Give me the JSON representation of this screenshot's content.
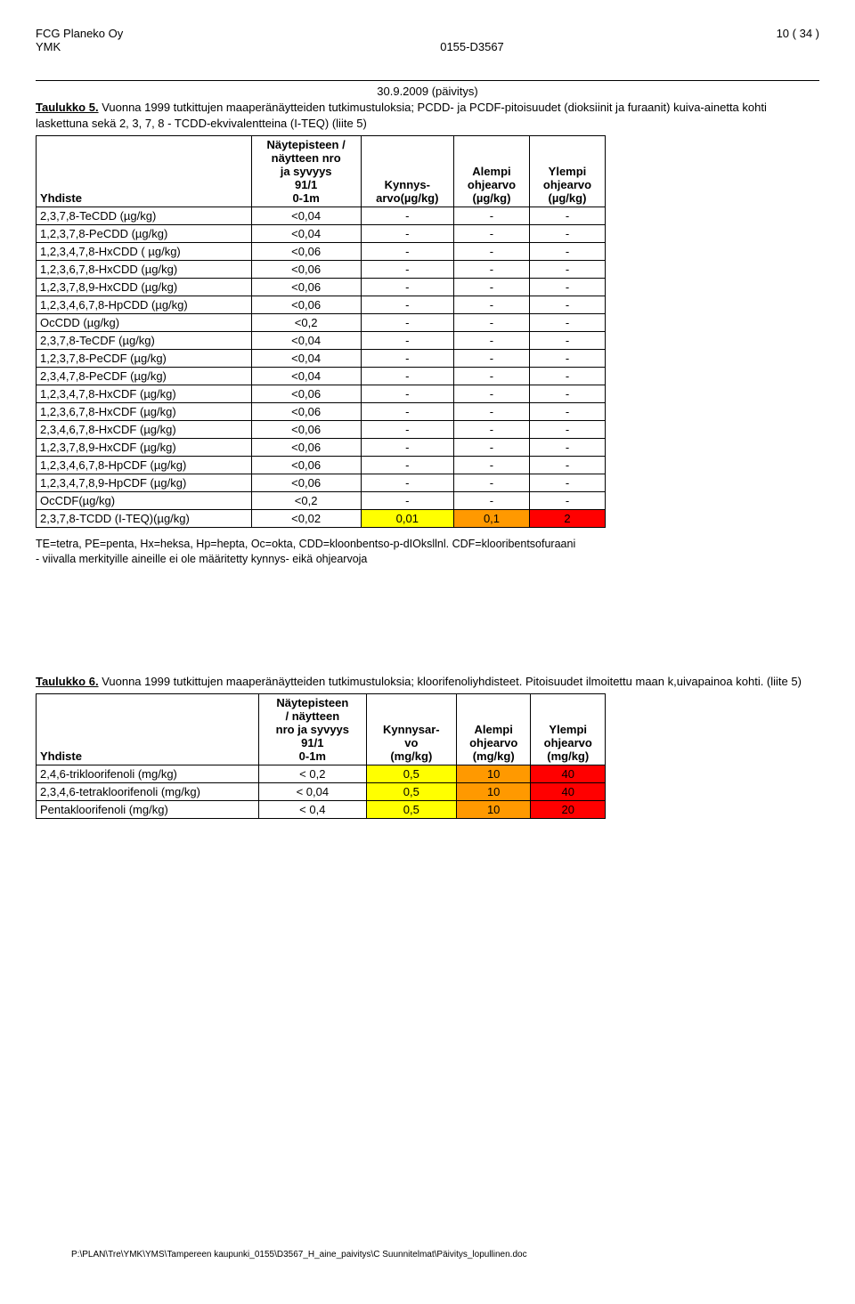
{
  "header": {
    "company": "FCG Planeko Oy",
    "dept": "YMK",
    "docnum": "0155-D3567",
    "pageinfo": "10 ( 34 )"
  },
  "date_line": "30.9.2009 (päivitys)",
  "table5": {
    "title_label": "Taulukko 5.",
    "caption": "Vuonna 1999 tutkittujen maaperänäytteiden tutkimustuloksia; PCDD- ja PCDF-pitoisuudet (dioksiinit ja furaanit) kuiva-ainetta kohti laskettuna sekä 2, 3, 7, 8 - TCDD-ekvivalentteina (I-TEQ) (liite 5)",
    "header": {
      "compound": "Yhdiste",
      "nap_lines": [
        "Näytepisteen /",
        "näytteen nro",
        "ja syvyys",
        "91/1",
        "0-1m"
      ],
      "kyn_lines": [
        "Kynnys-",
        "arvo(µg/kg)"
      ],
      "al_lines": [
        "Alempi",
        "ohjearvo",
        "(µg/kg)"
      ],
      "yl_lines": [
        "Ylempi",
        "ohjearvo",
        "(µg/kg)"
      ]
    },
    "rows": [
      {
        "c": "2,3,7,8-TeCDD (µg/kg)",
        "v": "<0,04",
        "k": "-",
        "a": "-",
        "y": "-"
      },
      {
        "c": "1,2,3,7,8-PeCDD (µg/kg)",
        "v": "<0,04",
        "k": "-",
        "a": "-",
        "y": "-"
      },
      {
        "c": "1,2,3,4,7,8-HxCDD ( µg/kg)",
        "v": "<0,06",
        "k": "-",
        "a": "-",
        "y": "-"
      },
      {
        "c": "1,2,3,6,7,8-HxCDD (µg/kg)",
        "v": "<0,06",
        "k": "-",
        "a": "-",
        "y": "-"
      },
      {
        "c": "1,2,3,7,8,9-HxCDD (µg/kg)",
        "v": "<0,06",
        "k": "-",
        "a": "-",
        "y": "-"
      },
      {
        "c": "1,2,3,4,6,7,8-HpCDD (µg/kg)",
        "v": "<0,06",
        "k": "-",
        "a": "-",
        "y": "-"
      },
      {
        "c": "OcCDD (µg/kg)",
        "v": "<0,2",
        "k": "-",
        "a": "-",
        "y": "-"
      },
      {
        "c": "2,3,7,8-TeCDF (µg/kg)",
        "v": "<0,04",
        "k": "-",
        "a": "-",
        "y": "-"
      },
      {
        "c": "1,2,3,7,8-PeCDF (µg/kg)",
        "v": "<0,04",
        "k": "-",
        "a": "-",
        "y": "-"
      },
      {
        "c": "2,3,4,7,8-PeCDF (µg/kg)",
        "v": "<0,04",
        "k": "-",
        "a": "-",
        "y": "-"
      },
      {
        "c": "1,2,3,4,7,8-HxCDF (µg/kg)",
        "v": "<0,06",
        "k": "-",
        "a": "-",
        "y": "-"
      },
      {
        "c": "1,2,3,6,7,8-HxCDF (µg/kg)",
        "v": "<0,06",
        "k": "-",
        "a": "-",
        "y": "-"
      },
      {
        "c": "2,3,4,6,7,8-HxCDF (µg/kg)",
        "v": "<0,06",
        "k": "-",
        "a": "-",
        "y": "-"
      },
      {
        "c": "1,2,3,7,8,9-HxCDF (µg/kg)",
        "v": "<0,06",
        "k": "-",
        "a": "-",
        "y": "-"
      },
      {
        "c": "1,2,3,4,6,7,8-HpCDF (µg/kg)",
        "v": "<0,06",
        "k": "-",
        "a": "-",
        "y": "-"
      },
      {
        "c": "1,2,3,4,7,8,9-HpCDF (µg/kg)",
        "v": "<0,06",
        "k": "-",
        "a": "-",
        "y": "-"
      },
      {
        "c": "OcCDF(µg/kg)",
        "v": "<0,2",
        "k": "-",
        "a": "-",
        "y": "-"
      },
      {
        "c": "2,3,7,8-TCDD (I-TEQ)(µg/kg)",
        "v": "<0,02",
        "k": "0,01",
        "a": "0,1",
        "y": "2",
        "kclass": "yellow",
        "aclass": "orange",
        "yclass": "red"
      }
    ]
  },
  "footnote5": "TE=tetra, PE=penta, Hx=heksa, Hp=hepta, Oc=okta, CDD=kloonbentso-p-dIOksllnl. CDF=klooribentsofuraani\n- viivalla merkityille aineille ei ole määritetty kynnys- eikä ohjearvoja",
  "table6": {
    "title_label": "Taulukko 6.",
    "caption": "Vuonna 1999 tutkittujen maaperänäytteiden tutkimustuloksia; kloorifenoliyhdisteet. Pitoisuudet ilmoitettu maan k,uivapainoa kohti. (liite 5)",
    "header": {
      "compound": "Yhdiste",
      "nap_lines": [
        "Näytepisteen",
        "/ näytteen",
        "nro ja syvyys",
        "91/1",
        "0-1m"
      ],
      "kyn_lines": [
        "Kynnysar-",
        "vo",
        "(mg/kg)"
      ],
      "al_lines": [
        "Alempi",
        "ohjearvo",
        "(mg/kg)"
      ],
      "yl_lines": [
        "Ylempi",
        "ohjearvo",
        "(mg/kg)"
      ]
    },
    "rows": [
      {
        "c": "2,4,6-trikloorifenoli (mg/kg)",
        "v": "< 0,2",
        "k": "0,5",
        "a": "10",
        "y": "40"
      },
      {
        "c": "2,3,4,6-tetrakloorifenoli (mg/kg)",
        "v": "< 0,04",
        "k": "0,5",
        "a": "10",
        "y": "40"
      },
      {
        "c": "Pentakloorifenoli (mg/kg)",
        "v": "< 0,4",
        "k": "0,5",
        "a": "10",
        "y": "20"
      }
    ]
  },
  "footer_path": "P:\\PLAN\\Tre\\YMK\\YMS\\Tampereen kaupunki_0155\\D3567_H_aine_paivitys\\C Suunnitelmat\\Päivitys_lopullinen.doc"
}
